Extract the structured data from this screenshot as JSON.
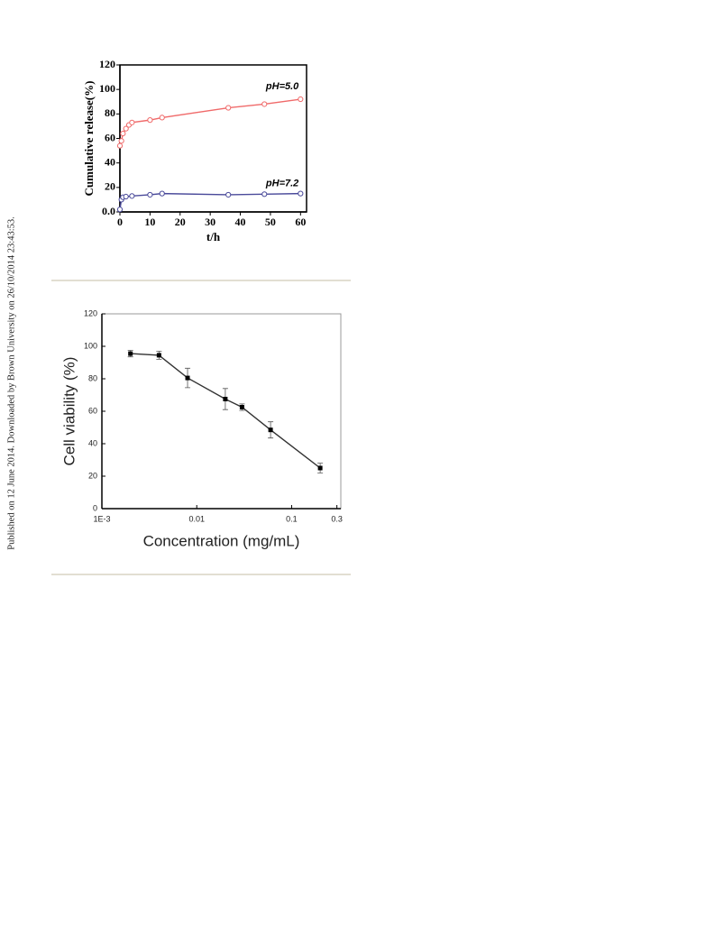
{
  "side_note": "Published on 12 June 2014. Downloaded by Brown University on 26/10/2014 23:43:53.",
  "chart_data": [
    {
      "type": "line",
      "xlabel": "t/h",
      "ylabel": "Cumulative release(%)",
      "xlim": [
        0,
        62
      ],
      "ylim": [
        0,
        120
      ],
      "xticks": [
        0,
        10,
        20,
        30,
        40,
        50,
        60
      ],
      "yticks": [
        {
          "value": 0,
          "label": "0.0"
        },
        20,
        40,
        60,
        80,
        100,
        120
      ],
      "marker": "circle-open",
      "legend": "inline",
      "series": [
        {
          "name": "pH=5.0",
          "color": "#f06a6a",
          "x": [
            0,
            0.5,
            1,
            2,
            3,
            4,
            10,
            14,
            36,
            48,
            60
          ],
          "values": [
            54,
            58,
            64,
            68,
            71,
            73,
            75,
            77,
            85,
            88,
            92
          ]
        },
        {
          "name": "pH=7.2",
          "color": "#4a4a9a",
          "x": [
            0,
            0.5,
            1,
            2,
            4,
            10,
            14,
            36,
            48,
            60
          ],
          "values": [
            2,
            10,
            12,
            12.5,
            13,
            14,
            15,
            14,
            14.5,
            15
          ]
        }
      ]
    },
    {
      "type": "line",
      "xlabel": "Concentration (mg/mL)",
      "ylabel": "Cell viability (%)",
      "xscale": "log",
      "xlim": [
        0.001,
        0.33
      ],
      "ylim": [
        0,
        120
      ],
      "xticks": [
        {
          "value": 0.001,
          "label": "1E-3"
        },
        0.01,
        0.1,
        0.3
      ],
      "yticks": [
        0,
        20,
        40,
        60,
        80,
        100,
        120
      ],
      "marker": "square",
      "frame_color": "#999999",
      "x": [
        0.002,
        0.004,
        0.008,
        0.02,
        0.03,
        0.06,
        0.2
      ],
      "series": [
        {
          "color": "#333333",
          "values": [
            95.5,
            94.5,
            80.5,
            67.5,
            62.5,
            48.5,
            25
          ],
          "errors": [
            2,
            2.5,
            6,
            6.5,
            2,
            5,
            3
          ]
        }
      ]
    }
  ]
}
